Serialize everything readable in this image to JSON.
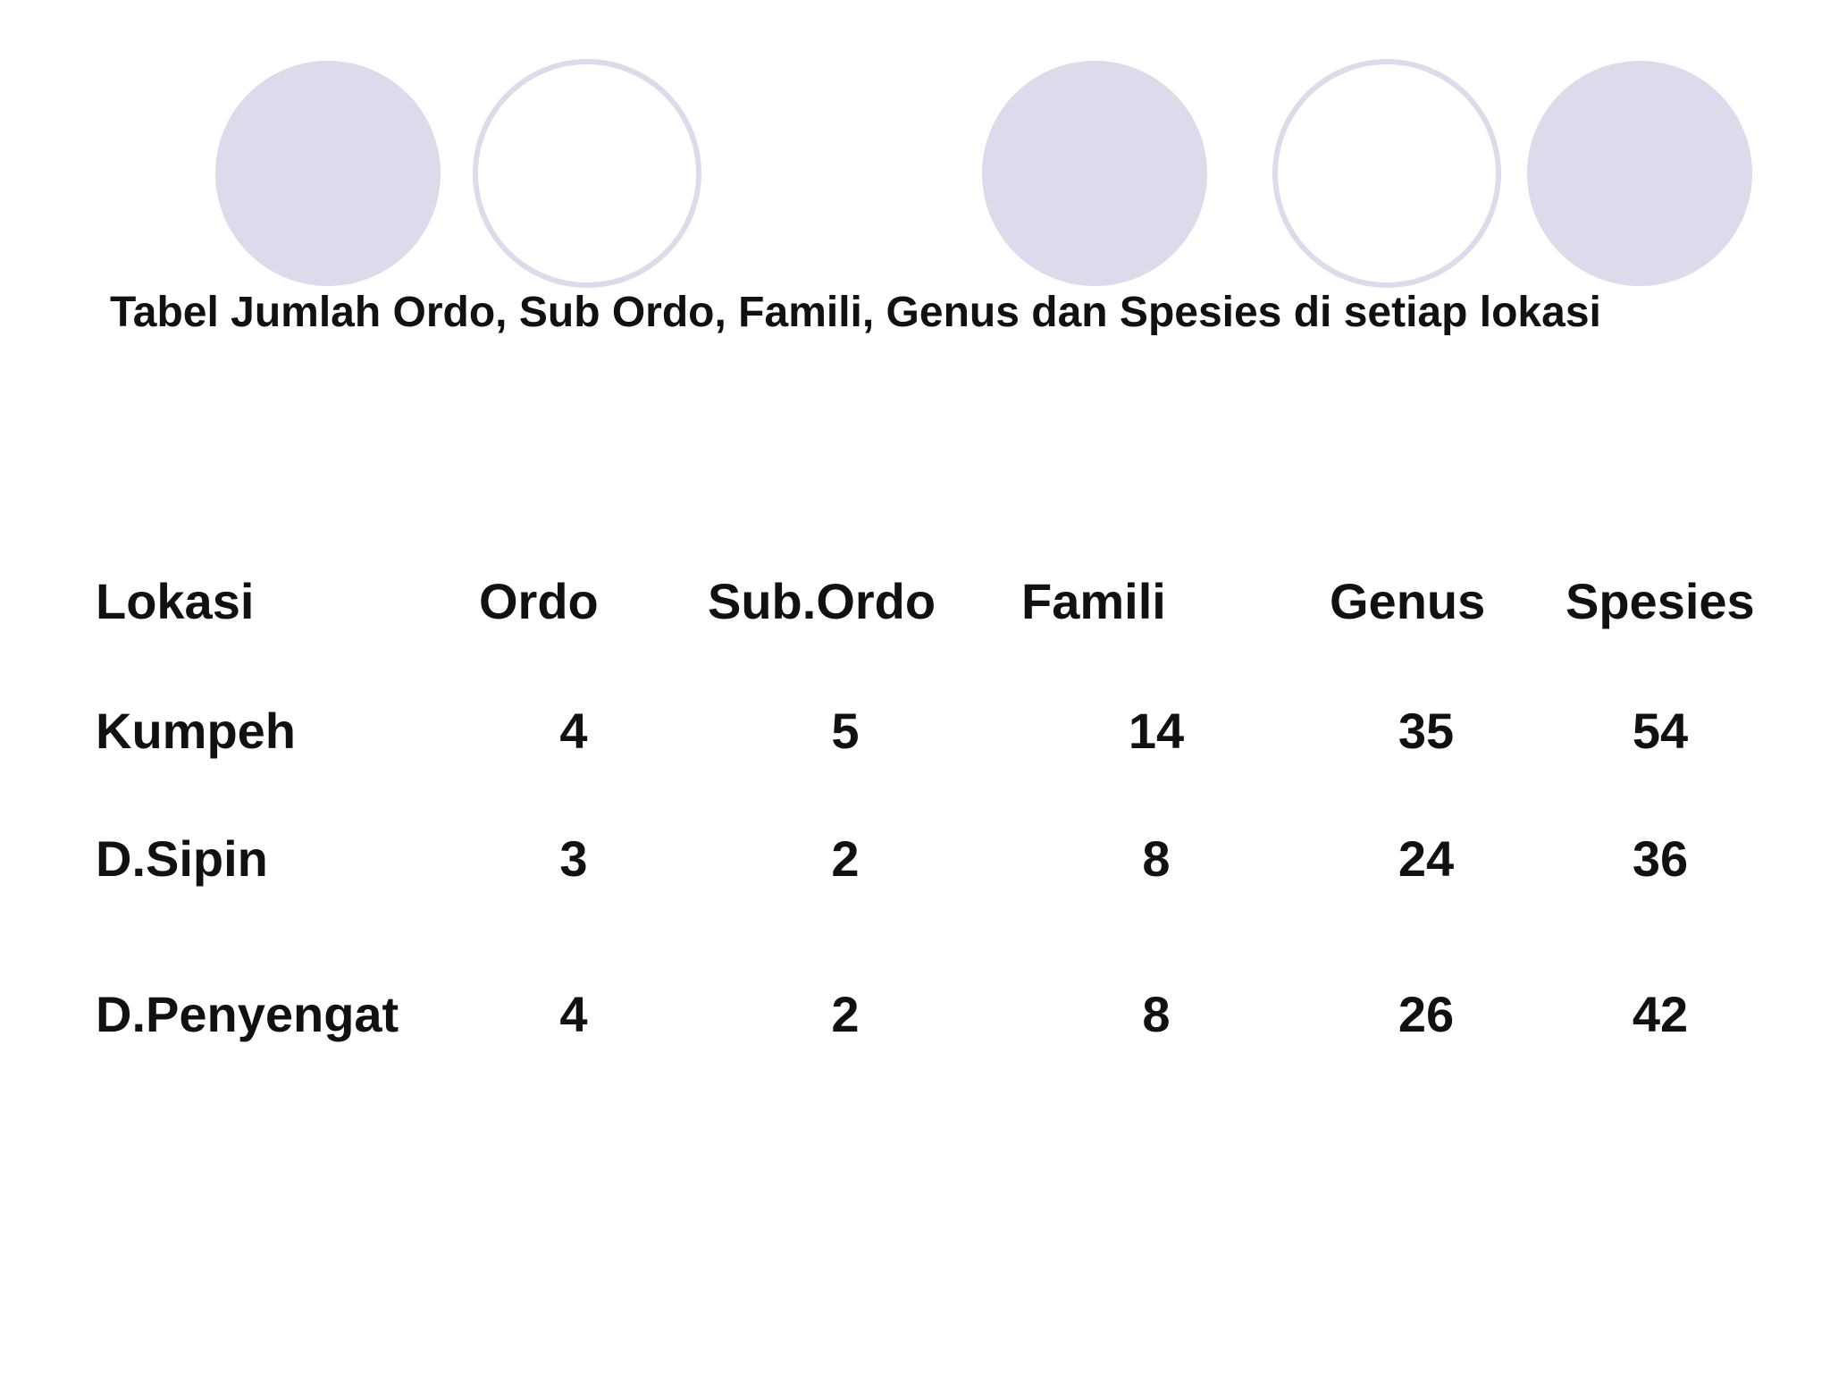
{
  "title": "Tabel Jumlah Ordo, Sub Ordo, Famili, Genus dan Spesies di setiap lokasi",
  "table": {
    "headers": [
      "Lokasi",
      "Ordo",
      "Sub.Ordo",
      "Famili",
      "Genus",
      "Spesies"
    ],
    "rows": [
      [
        "Kumpeh",
        "4",
        "5",
        "14",
        "35",
        "54"
      ],
      [
        "D.Sipin",
        "3",
        "2",
        "8",
        "24",
        "36"
      ],
      [
        "D.Penyengat",
        "4",
        "2",
        "8",
        "26",
        "42"
      ]
    ]
  },
  "colors": {
    "decor": "#dcdaeb",
    "text": "#111111",
    "background": "#ffffff"
  }
}
